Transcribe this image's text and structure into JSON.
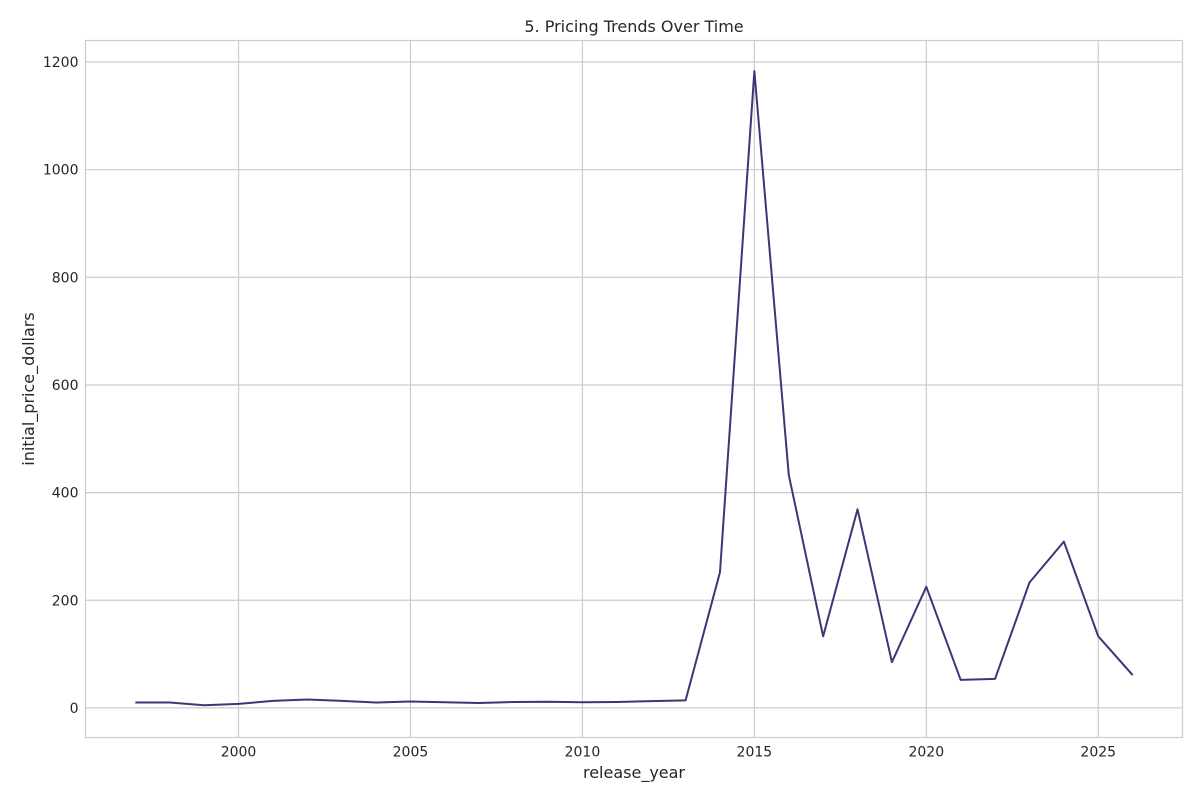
{
  "chart_data": {
    "type": "line",
    "title": "5. Pricing Trends Over Time",
    "xlabel": "release_year",
    "ylabel": "initial_price_dollars",
    "xlim": [
      1995.55,
      2027.45
    ],
    "ylim": [
      -55,
      1240
    ],
    "xticks": [
      2000,
      2005,
      2010,
      2015,
      2020,
      2025
    ],
    "yticks": [
      0,
      200,
      400,
      600,
      800,
      1000,
      1200
    ],
    "grid": true,
    "legend": "none",
    "line_color": "#3f3576",
    "series": [
      {
        "x": [
          1997,
          1998,
          1999,
          2000,
          2001,
          2002,
          2003,
          2004,
          2005,
          2006,
          2007,
          2008,
          2009,
          2010,
          2011,
          2012,
          2013,
          2014,
          2015,
          2016,
          2017,
          2018,
          2019,
          2020,
          2021,
          2022,
          2023,
          2024,
          2025,
          2026
        ],
        "y": [
          10,
          10,
          5,
          7.5,
          13,
          15.5,
          13,
          10,
          12,
          10.5,
          9,
          11,
          11.5,
          10.5,
          11,
          12.5,
          14,
          252,
          1183,
          433,
          133,
          369,
          85,
          225,
          52,
          54,
          233,
          309,
          133,
          61
        ]
      }
    ]
  }
}
